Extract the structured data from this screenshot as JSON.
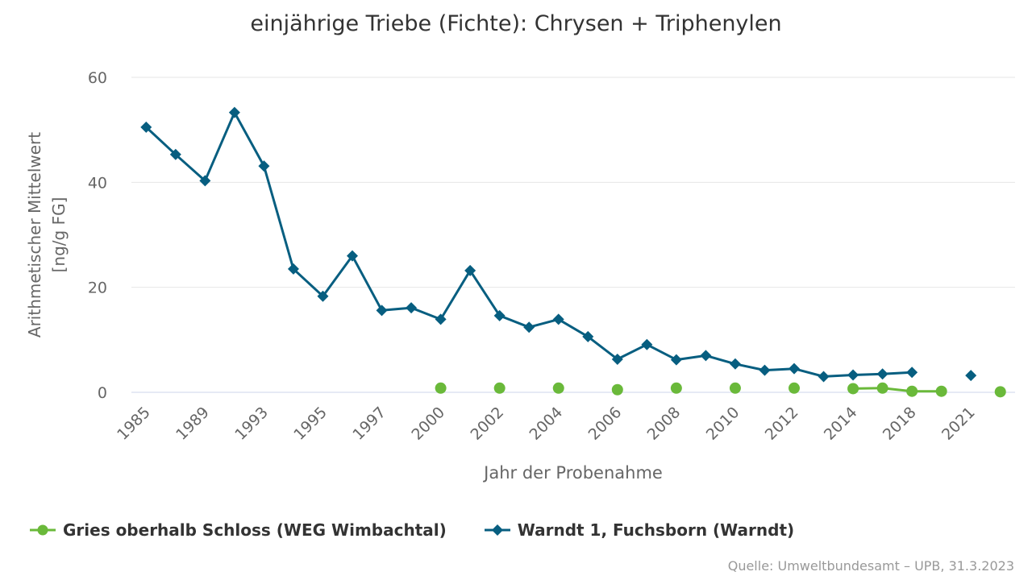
{
  "chart_data": {
    "type": "line",
    "title": "einjährige Triebe (Fichte): Chrysen + Triphenylen",
    "xlabel": "Jahr der Probenahme",
    "ylabel_line1": "Arithmetischer Mittelwert",
    "ylabel_line2": "[ng/g FG]",
    "ylim": [
      0,
      60
    ],
    "yticks": [
      0,
      20,
      40,
      60
    ],
    "x_tick_labels": [
      "1985",
      "1989",
      "1993",
      "1995",
      "1997",
      "2000",
      "2002",
      "2004",
      "2006",
      "2008",
      "2010",
      "2012",
      "2014",
      "2018",
      "2021"
    ],
    "grid": true,
    "legend_position": "bottom-left",
    "series": [
      {
        "name": "Gries oberhalb Schloss (WEG Wimbachtal)",
        "color": "#6ab93a",
        "marker": "circle",
        "values": [
          null,
          null,
          null,
          null,
          null,
          null,
          null,
          null,
          null,
          null,
          0.8,
          null,
          0.8,
          null,
          0.8,
          null,
          0.5,
          null,
          0.8,
          null,
          0.8,
          null,
          0.8,
          null,
          0.7,
          0.8,
          0.2,
          0.2,
          null,
          0.1
        ],
        "connected_from_index": 24
      },
      {
        "name": "Warndt 1, Fuchsborn (Warndt)",
        "color": "#075e80",
        "marker": "diamond",
        "values": [
          50.5,
          45.3,
          40.3,
          53.3,
          43.1,
          23.5,
          18.3,
          26.0,
          15.6,
          16.1,
          13.9,
          23.2,
          14.6,
          12.4,
          13.9,
          10.6,
          6.3,
          9.1,
          6.2,
          7.0,
          5.4,
          4.2,
          4.5,
          3.0,
          3.3,
          3.5,
          3.8,
          null,
          3.2,
          null
        ]
      }
    ]
  },
  "legend": {
    "item1": "Gries oberhalb Schloss (WEG Wimbachtal)",
    "item2": "Warndt 1, Fuchsborn (Warndt)"
  },
  "source": "Quelle: Umweltbundesamt – UPB, 31.3.2023",
  "colors": {
    "gridline": "#e6e6e6",
    "axis": "#ccd6eb",
    "text": "#666666"
  }
}
